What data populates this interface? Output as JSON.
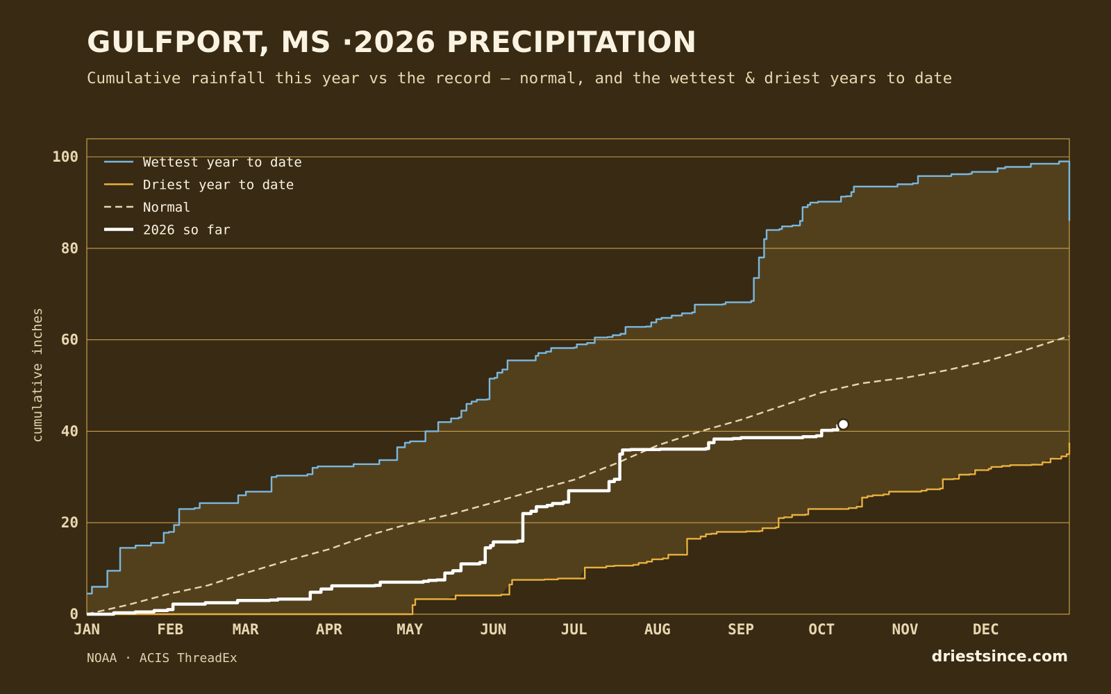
{
  "header": {
    "title": "GULFPORT, MS ·2026 PRECIPITATION",
    "subtitle": "Cumulative rainfall this year vs the record — normal, and the wettest & driest years to date"
  },
  "footer": {
    "source": "NOAA · ACIS ThreadEx",
    "brand": "driestsince.com"
  },
  "colors": {
    "background": "#382a13",
    "band_fill": "#52401d",
    "grid": "#c9a04a",
    "wettest": "#7ab8e0",
    "driest": "#e8b13f",
    "normal": "#e6d6b1",
    "current": "#ffffff"
  },
  "chart_data": {
    "type": "line",
    "ylabel": "cumulative inches",
    "ylim": [
      0,
      100
    ],
    "y_ticks": [
      0,
      20,
      40,
      60,
      80,
      100
    ],
    "x_ticks": [
      {
        "label": "JAN",
        "day": 0
      },
      {
        "label": "FEB",
        "day": 31
      },
      {
        "label": "MAR",
        "day": 59
      },
      {
        "label": "APR",
        "day": 90
      },
      {
        "label": "MAY",
        "day": 120
      },
      {
        "label": "JUN",
        "day": 151
      },
      {
        "label": "JUL",
        "day": 181
      },
      {
        "label": "AUG",
        "day": 212
      },
      {
        "label": "SEP",
        "day": 243
      },
      {
        "label": "OCT",
        "day": 273
      },
      {
        "label": "NOV",
        "day": 304
      },
      {
        "label": "DEC",
        "day": 334
      }
    ],
    "xlim": [
      0,
      365
    ],
    "grid": true,
    "legend_position": "top-left",
    "legend": [
      {
        "label": "Wettest year to date",
        "series": "wettest"
      },
      {
        "label": "Driest year to date",
        "series": "driest"
      },
      {
        "label": "Normal",
        "series": "normal"
      },
      {
        "label": "2026 so far",
        "series": "current"
      }
    ],
    "series": [
      {
        "key": "wettest",
        "style": "step",
        "points": [
          [
            0,
            4.5
          ],
          [
            2,
            6
          ],
          [
            6,
            6
          ],
          [
            8,
            9.5
          ],
          [
            11,
            9.5
          ],
          [
            13,
            14.5
          ],
          [
            17,
            14.5
          ],
          [
            19,
            15
          ],
          [
            23,
            15
          ],
          [
            25,
            15.6
          ],
          [
            28,
            15.6
          ],
          [
            30,
            17.8
          ],
          [
            32,
            18
          ],
          [
            34,
            19.5
          ],
          [
            36,
            23
          ],
          [
            40,
            23
          ],
          [
            42,
            23.2
          ],
          [
            44,
            24.3
          ],
          [
            57,
            24.3
          ],
          [
            59,
            26
          ],
          [
            60,
            26
          ],
          [
            62,
            26.8
          ],
          [
            71,
            26.8
          ],
          [
            72,
            30
          ],
          [
            74,
            30.3
          ],
          [
            83,
            30.3
          ],
          [
            86,
            30.6
          ],
          [
            88,
            32
          ],
          [
            90,
            32.3
          ],
          [
            103,
            32.3
          ],
          [
            104,
            32.8
          ],
          [
            113,
            32.8
          ],
          [
            114,
            33.7
          ],
          [
            119,
            33.7
          ],
          [
            121,
            36.5
          ],
          [
            123,
            36.5
          ],
          [
            124,
            37.5
          ],
          [
            126,
            37.8
          ],
          [
            131,
            37.8
          ],
          [
            132,
            40
          ],
          [
            135,
            40
          ],
          [
            137,
            42
          ],
          [
            141,
            42
          ],
          [
            142,
            42.8
          ],
          [
            145,
            43
          ],
          [
            146,
            44.5
          ],
          [
            148,
            46
          ],
          [
            150,
            46.5
          ],
          [
            152,
            46.9
          ],
          [
            156,
            47
          ],
          [
            157,
            51.5
          ],
          [
            159,
            51.7
          ],
          [
            160,
            52.8
          ],
          [
            162,
            53.5
          ],
          [
            164,
            55.5
          ],
          [
            173,
            55.5
          ],
          [
            175,
            56.5
          ],
          [
            176,
            57.1
          ],
          [
            179,
            57.4
          ],
          [
            181,
            58.2
          ],
          [
            190,
            58.3
          ],
          [
            191,
            59
          ],
          [
            195,
            59.3
          ],
          [
            198,
            60.5
          ],
          [
            203,
            60.6
          ],
          [
            205,
            61
          ],
          [
            208,
            61.3
          ],
          [
            210,
            62.8
          ],
          [
            218,
            62.9
          ],
          [
            220,
            63.8
          ],
          [
            222,
            64.5
          ],
          [
            224,
            64.8
          ],
          [
            228,
            65.3
          ],
          [
            232,
            65.8
          ],
          [
            236,
            66
          ],
          [
            237,
            67.7
          ],
          [
            248,
            67.8
          ],
          [
            249,
            68.2
          ],
          [
            258,
            68.2
          ],
          [
            259,
            68.5
          ],
          [
            260,
            73.5
          ],
          [
            261,
            73.5
          ],
          [
            262,
            78
          ],
          [
            264,
            82
          ],
          [
            265,
            84
          ],
          [
            270,
            84.2
          ],
          [
            271,
            84.8
          ],
          [
            275,
            85
          ],
          [
            278,
            86
          ],
          [
            279,
            89
          ],
          [
            281,
            89.5
          ],
          [
            282,
            90
          ],
          [
            285,
            90.2
          ],
          [
            292,
            90.2
          ],
          [
            294,
            91.3
          ],
          [
            296,
            91.4
          ],
          [
            298,
            92.3
          ],
          [
            299,
            93.5
          ],
          [
            313,
            93.5
          ],
          [
            316,
            94
          ],
          [
            322,
            94.2
          ],
          [
            324,
            95.8
          ],
          [
            336,
            95.8
          ],
          [
            337,
            96.2
          ],
          [
            344,
            96.3
          ],
          [
            345,
            96.7
          ],
          [
            353,
            96.7
          ],
          [
            355,
            97.5
          ],
          [
            358,
            97.8
          ],
          [
            367,
            97.8
          ],
          [
            368,
            98.5
          ],
          [
            377,
            98.5
          ],
          [
            379,
            99
          ],
          [
            382,
            99
          ],
          [
            383,
            86
          ]
        ]
      },
      {
        "key": "driest",
        "style": "step",
        "points": [
          [
            0,
            0
          ],
          [
            120,
            0
          ],
          [
            121,
            2
          ],
          [
            122,
            3.3
          ],
          [
            130,
            3.3
          ],
          [
            133,
            3.3
          ],
          [
            137,
            4.1
          ],
          [
            150,
            4.1
          ],
          [
            154,
            4.3
          ],
          [
            157,
            6.5
          ],
          [
            158,
            7.5
          ],
          [
            168,
            7.5
          ],
          [
            170,
            7.6
          ],
          [
            175,
            7.8
          ],
          [
            183,
            7.8
          ],
          [
            185,
            10.2
          ],
          [
            192,
            10.2
          ],
          [
            193,
            10.5
          ],
          [
            196,
            10.6
          ],
          [
            203,
            10.8
          ],
          [
            205,
            11.2
          ],
          [
            208,
            11.5
          ],
          [
            210,
            12
          ],
          [
            214,
            12.2
          ],
          [
            216,
            13
          ],
          [
            222,
            13
          ],
          [
            223,
            16.5
          ],
          [
            226,
            16.5
          ],
          [
            228,
            17
          ],
          [
            230,
            17.5
          ],
          [
            232,
            17.6
          ],
          [
            234,
            18
          ],
          [
            245,
            18.1
          ],
          [
            250,
            18.2
          ],
          [
            251,
            18.8
          ],
          [
            256,
            19
          ],
          [
            257,
            21
          ],
          [
            259,
            21.2
          ],
          [
            262,
            21.7
          ],
          [
            267,
            21.8
          ],
          [
            268,
            23
          ],
          [
            283,
            23.2
          ],
          [
            286,
            23.5
          ],
          [
            288,
            25.5
          ],
          [
            290,
            25.8
          ],
          [
            292,
            26
          ],
          [
            296,
            26.2
          ],
          [
            298,
            26.8
          ],
          [
            307,
            26.8
          ],
          [
            310,
            27
          ],
          [
            312,
            27.3
          ],
          [
            317,
            27.5
          ],
          [
            318,
            29.5
          ],
          [
            322,
            29.6
          ],
          [
            324,
            30.5
          ],
          [
            328,
            30.6
          ],
          [
            330,
            31.5
          ],
          [
            335,
            31.8
          ],
          [
            336,
            32.2
          ],
          [
            340,
            32.4
          ],
          [
            343,
            32.6
          ],
          [
            351,
            32.7
          ],
          [
            355,
            33.2
          ],
          [
            358,
            34
          ],
          [
            362,
            34.5
          ],
          [
            364,
            35
          ],
          [
            365,
            37.5
          ]
        ]
      },
      {
        "key": "normal",
        "style": "line",
        "points": [
          [
            0,
            0
          ],
          [
            15,
            2
          ],
          [
            31,
            4.5
          ],
          [
            45,
            6.3
          ],
          [
            59,
            9
          ],
          [
            75,
            11.8
          ],
          [
            90,
            14.2
          ],
          [
            105,
            17.3
          ],
          [
            120,
            19.8
          ],
          [
            135,
            21.8
          ],
          [
            151,
            24.4
          ],
          [
            166,
            27
          ],
          [
            181,
            29.4
          ],
          [
            196,
            32.8
          ],
          [
            212,
            36.9
          ],
          [
            228,
            40
          ],
          [
            243,
            42.5
          ],
          [
            258,
            45.5
          ],
          [
            273,
            48.5
          ],
          [
            288,
            50.5
          ],
          [
            304,
            51.7
          ],
          [
            319,
            53.3
          ],
          [
            334,
            55.3
          ],
          [
            349,
            57.8
          ],
          [
            365,
            60.8
          ]
        ]
      },
      {
        "key": "current",
        "style": "step",
        "points": [
          [
            0,
            0
          ],
          [
            10,
            0.3
          ],
          [
            18,
            0.5
          ],
          [
            25,
            0.8
          ],
          [
            30,
            1
          ],
          [
            32,
            2.2
          ],
          [
            42,
            2.2
          ],
          [
            44,
            2.5
          ],
          [
            55,
            2.5
          ],
          [
            56,
            3
          ],
          [
            68,
            3.1
          ],
          [
            71,
            3.3
          ],
          [
            81,
            3.3
          ],
          [
            83,
            4.8
          ],
          [
            85,
            4.8
          ],
          [
            87,
            5.5
          ],
          [
            89,
            5.5
          ],
          [
            91,
            6.2
          ],
          [
            107,
            6.3
          ],
          [
            109,
            7
          ],
          [
            125,
            7.2
          ],
          [
            127,
            7.4
          ],
          [
            130,
            7.5
          ],
          [
            133,
            9
          ],
          [
            136,
            9.5
          ],
          [
            139,
            11
          ],
          [
            146,
            11.3
          ],
          [
            148,
            14.5
          ],
          [
            150,
            15
          ],
          [
            151,
            15.8
          ],
          [
            160,
            16
          ],
          [
            162,
            22
          ],
          [
            165,
            22.5
          ],
          [
            167,
            23.5
          ],
          [
            171,
            23.8
          ],
          [
            173,
            24.2
          ],
          [
            177,
            24.5
          ],
          [
            179,
            27
          ],
          [
            192,
            27
          ],
          [
            194,
            29
          ],
          [
            196,
            29.5
          ],
          [
            198,
            35
          ],
          [
            199,
            35.9
          ],
          [
            202,
            36
          ],
          [
            213,
            36.1
          ],
          [
            230,
            36.2
          ],
          [
            231,
            37.5
          ],
          [
            233,
            38.3
          ],
          [
            240,
            38.4
          ],
          [
            243,
            38.6
          ],
          [
            263,
            38.6
          ],
          [
            266,
            38.8
          ],
          [
            271,
            39
          ],
          [
            273,
            40.2
          ],
          [
            277,
            40.3
          ],
          [
            279,
            41.5
          ]
        ],
        "marker": [
          279,
          41.5
        ]
      }
    ]
  }
}
